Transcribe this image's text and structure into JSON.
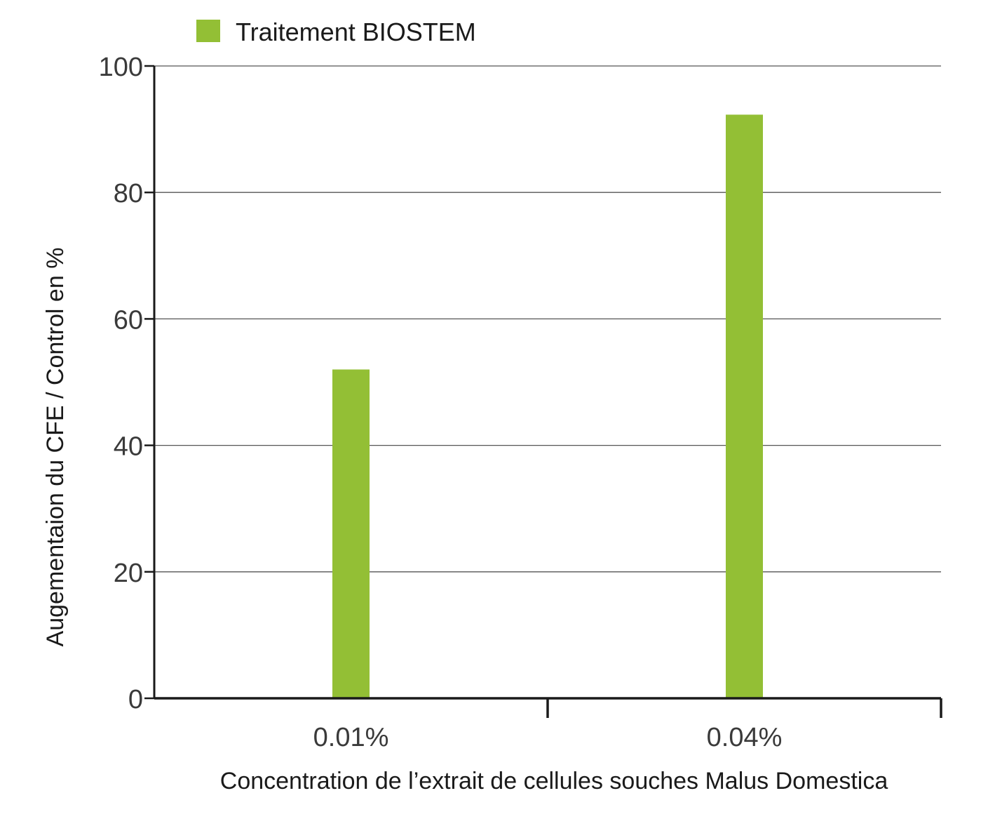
{
  "chart_data": {
    "type": "bar",
    "categories": [
      "0.01%",
      "0.04%"
    ],
    "series": [
      {
        "name": "Traitement BIOSTEM",
        "values": [
          52,
          92.3
        ],
        "color": "#93bf35"
      }
    ],
    "xlabel": "Concentration de l’extrait de cellules souches Malus Domestica",
    "ylabel": "Augementaion du CFE / Control en %",
    "ylim": [
      0,
      100
    ],
    "yticks": [
      0,
      20,
      40,
      60,
      80,
      100
    ],
    "grid": true,
    "legend_position": "top-left"
  }
}
